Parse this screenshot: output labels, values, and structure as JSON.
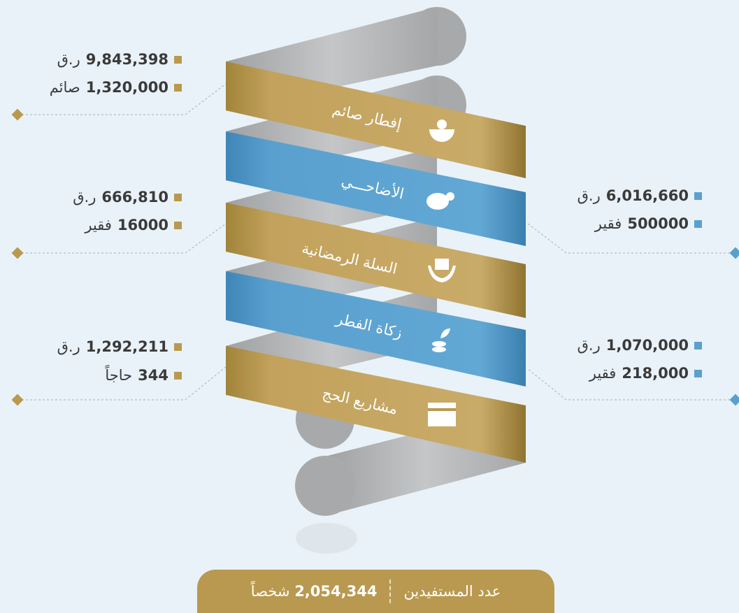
{
  "items": [
    {
      "label": "إفطار صائم",
      "amount": "9,843,398",
      "amount_unit": "ر.ق",
      "count": "1,320,000",
      "count_unit": "صائم"
    },
    {
      "label": "الأضاحـــي",
      "amount": "6,016,660",
      "amount_unit": "ر.ق",
      "count": "500000",
      "count_unit": "فقير"
    },
    {
      "label": "السلة الرمضانية",
      "amount": "666,810",
      "amount_unit": "ر.ق",
      "count": "16000",
      "count_unit": "فقير"
    },
    {
      "label": "زكاة الفطر",
      "amount": "1,070,000",
      "amount_unit": "ر.ق",
      "count": "218,000",
      "count_unit": "فقير"
    },
    {
      "label": "مشاريع الحج",
      "amount": "1,292,211",
      "amount_unit": "ر.ق",
      "count": "344",
      "count_unit": "حاجاً"
    }
  ],
  "footer": {
    "label": "عدد المستفيدين",
    "total": "2,054,344",
    "unit": "شخصاً"
  }
}
